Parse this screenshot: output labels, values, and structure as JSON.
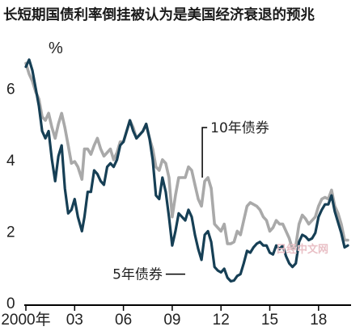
{
  "chart_data": {
    "type": "line",
    "title": "长短期国债利率倒挂被认为是美国经济衰退的预兆",
    "ylabel": "%",
    "xlabel": "",
    "xlim": [
      2000.0,
      2019.9
    ],
    "ylim": [
      0,
      7
    ],
    "yticks": [
      0,
      2,
      4,
      6
    ],
    "xticks": [
      {
        "x": 2000,
        "label": "2000年"
      },
      {
        "x": 2003,
        "label": "03"
      },
      {
        "x": 2006,
        "label": "06"
      },
      {
        "x": 2009,
        "label": "09"
      },
      {
        "x": 2012,
        "label": "12"
      },
      {
        "x": 2015,
        "label": "15"
      },
      {
        "x": 2018,
        "label": "18"
      }
    ],
    "grid": false,
    "legend": "none",
    "series": [
      {
        "name": "10年债券",
        "color": "#a9a9a9",
        "label_pos": [
          2011.35,
          4.9
        ],
        "x": [
          2000.0,
          2000.2,
          2000.4,
          2000.6,
          2000.8,
          2001.0,
          2001.2,
          2001.4,
          2001.6,
          2001.8,
          2002.0,
          2002.2,
          2002.4,
          2002.6,
          2002.8,
          2003.0,
          2003.2,
          2003.45,
          2003.6,
          2003.8,
          2004.0,
          2004.2,
          2004.4,
          2004.6,
          2004.8,
          2005.0,
          2005.2,
          2005.4,
          2005.6,
          2005.8,
          2006.0,
          2006.2,
          2006.4,
          2006.6,
          2006.8,
          2007.0,
          2007.2,
          2007.4,
          2007.6,
          2007.8,
          2008.0,
          2008.2,
          2008.4,
          2008.6,
          2008.8,
          2009.0,
          2009.2,
          2009.4,
          2009.6,
          2009.8,
          2010.0,
          2010.2,
          2010.4,
          2010.6,
          2010.8,
          2011.0,
          2011.2,
          2011.4,
          2011.6,
          2011.8,
          2012.0,
          2012.2,
          2012.4,
          2012.6,
          2012.8,
          2013.0,
          2013.2,
          2013.4,
          2013.6,
          2013.8,
          2014.0,
          2014.2,
          2014.4,
          2014.6,
          2014.8,
          2015.0,
          2015.2,
          2015.4,
          2015.6,
          2015.8,
          2016.0,
          2016.2,
          2016.4,
          2016.6,
          2016.8,
          2017.0,
          2017.2,
          2017.4,
          2017.6,
          2017.8,
          2018.0,
          2018.2,
          2018.4,
          2018.6,
          2018.8,
          2019.0,
          2019.2,
          2019.4,
          2019.6,
          2019.8
        ],
        "y": [
          6.7,
          6.4,
          6.2,
          5.9,
          5.7,
          5.2,
          5.1,
          5.3,
          4.9,
          4.6,
          5.0,
          5.3,
          4.9,
          4.4,
          3.9,
          3.95,
          3.8,
          3.45,
          4.3,
          4.3,
          4.15,
          4.4,
          4.6,
          4.3,
          4.1,
          4.2,
          4.3,
          4.0,
          4.2,
          4.5,
          4.5,
          4.8,
          5.1,
          4.9,
          4.6,
          4.7,
          4.8,
          5.0,
          4.6,
          4.3,
          3.8,
          3.7,
          4.0,
          3.9,
          3.5,
          2.4,
          3.0,
          3.5,
          3.5,
          3.5,
          3.8,
          3.7,
          3.3,
          2.9,
          2.7,
          3.4,
          3.5,
          3.2,
          2.2,
          2.1,
          2.0,
          2.2,
          1.65,
          1.65,
          1.7,
          2.0,
          1.9,
          2.3,
          2.7,
          2.8,
          2.75,
          2.7,
          2.6,
          2.4,
          2.3,
          2.0,
          2.1,
          2.3,
          2.2,
          2.2,
          2.0,
          1.8,
          1.5,
          1.6,
          2.2,
          2.45,
          2.35,
          2.2,
          2.3,
          2.4,
          2.7,
          2.9,
          2.95,
          2.9,
          3.15,
          2.7,
          2.5,
          2.2,
          1.75,
          1.75
        ]
      },
      {
        "name": "5年债券",
        "color": "#163f55",
        "label_pos": [
          2009.0,
          0.8
        ],
        "x": [
          2000.0,
          2000.2,
          2000.4,
          2000.6,
          2000.8,
          2001.0,
          2001.2,
          2001.4,
          2001.6,
          2001.8,
          2002.0,
          2002.2,
          2002.4,
          2002.6,
          2002.8,
          2003.0,
          2003.2,
          2003.45,
          2003.6,
          2003.8,
          2004.0,
          2004.2,
          2004.4,
          2004.6,
          2004.8,
          2005.0,
          2005.2,
          2005.4,
          2005.6,
          2005.8,
          2006.0,
          2006.2,
          2006.4,
          2006.6,
          2006.8,
          2007.0,
          2007.2,
          2007.4,
          2007.6,
          2007.8,
          2008.0,
          2008.2,
          2008.4,
          2008.6,
          2008.8,
          2009.0,
          2009.2,
          2009.4,
          2009.6,
          2009.8,
          2010.0,
          2010.2,
          2010.4,
          2010.6,
          2010.8,
          2011.0,
          2011.2,
          2011.4,
          2011.6,
          2011.8,
          2012.0,
          2012.2,
          2012.4,
          2012.6,
          2012.8,
          2013.0,
          2013.2,
          2013.4,
          2013.6,
          2013.8,
          2014.0,
          2014.2,
          2014.4,
          2014.6,
          2014.8,
          2015.0,
          2015.2,
          2015.4,
          2015.6,
          2015.8,
          2016.0,
          2016.2,
          2016.4,
          2016.6,
          2016.8,
          2017.0,
          2017.2,
          2017.4,
          2017.6,
          2017.8,
          2018.0,
          2018.2,
          2018.4,
          2018.6,
          2018.8,
          2019.0,
          2019.2,
          2019.4,
          2019.6,
          2019.8
        ],
        "y": [
          6.6,
          6.8,
          6.5,
          6.0,
          5.5,
          4.8,
          4.6,
          4.8,
          4.0,
          3.4,
          4.1,
          4.4,
          3.2,
          2.5,
          2.6,
          2.9,
          2.4,
          2.0,
          2.4,
          3.1,
          3.1,
          3.7,
          3.6,
          3.4,
          3.3,
          3.8,
          3.9,
          3.8,
          4.0,
          4.4,
          4.5,
          4.8,
          5.1,
          4.8,
          4.6,
          4.7,
          4.8,
          5.0,
          4.6,
          4.0,
          3.0,
          2.9,
          3.5,
          3.1,
          2.4,
          1.6,
          2.0,
          2.5,
          2.4,
          2.3,
          2.6,
          2.4,
          1.9,
          1.5,
          1.2,
          1.9,
          2.0,
          1.7,
          1.0,
          0.9,
          0.85,
          0.95,
          0.7,
          0.6,
          0.62,
          0.75,
          0.8,
          1.1,
          1.45,
          1.4,
          1.55,
          1.65,
          1.7,
          1.6,
          1.6,
          1.4,
          1.35,
          1.6,
          1.5,
          1.6,
          1.3,
          1.1,
          1.0,
          1.1,
          1.7,
          1.9,
          1.85,
          1.75,
          1.8,
          1.95,
          2.4,
          2.6,
          2.75,
          2.75,
          3.0,
          2.55,
          2.25,
          1.95,
          1.55,
          1.6
        ]
      }
    ],
    "watermark": "日经中文网"
  }
}
